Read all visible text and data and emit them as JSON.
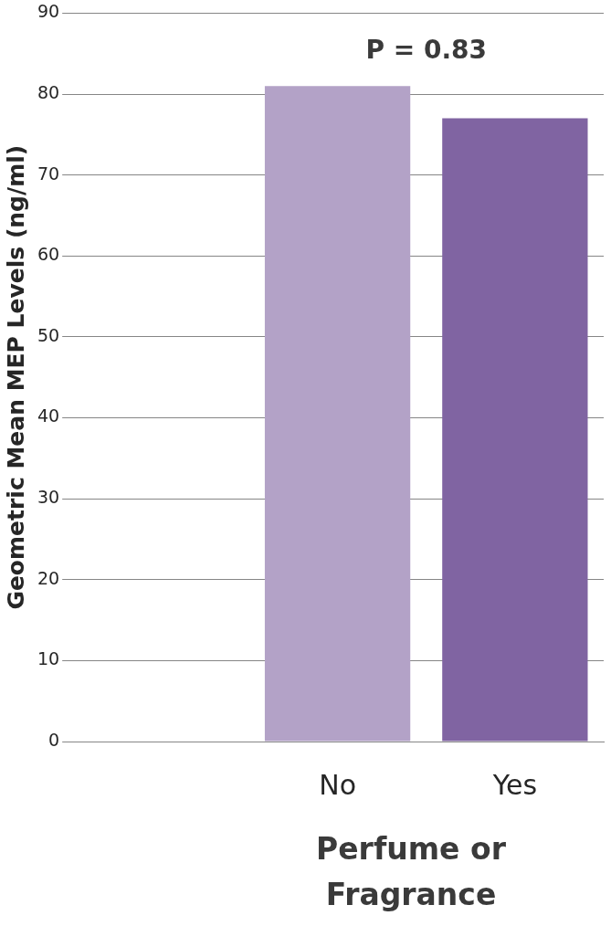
{
  "chart_data": {
    "type": "bar",
    "categories": [
      null,
      "No",
      "Yes"
    ],
    "values": [
      null,
      81,
      77
    ],
    "colors": [
      "#b3a2c7",
      "#b3a2c7",
      "#8064a2"
    ],
    "ylabel": "Geometric Mean MEP Levels (ng/ml)",
    "xlabel": "Perfume or Fragrance",
    "ylim": [
      0,
      90
    ],
    "yticks": [
      0,
      10,
      20,
      30,
      40,
      50,
      60,
      70,
      80,
      90
    ],
    "grid": "y",
    "legend": false,
    "annotations": [
      "P = 0.83"
    ]
  }
}
